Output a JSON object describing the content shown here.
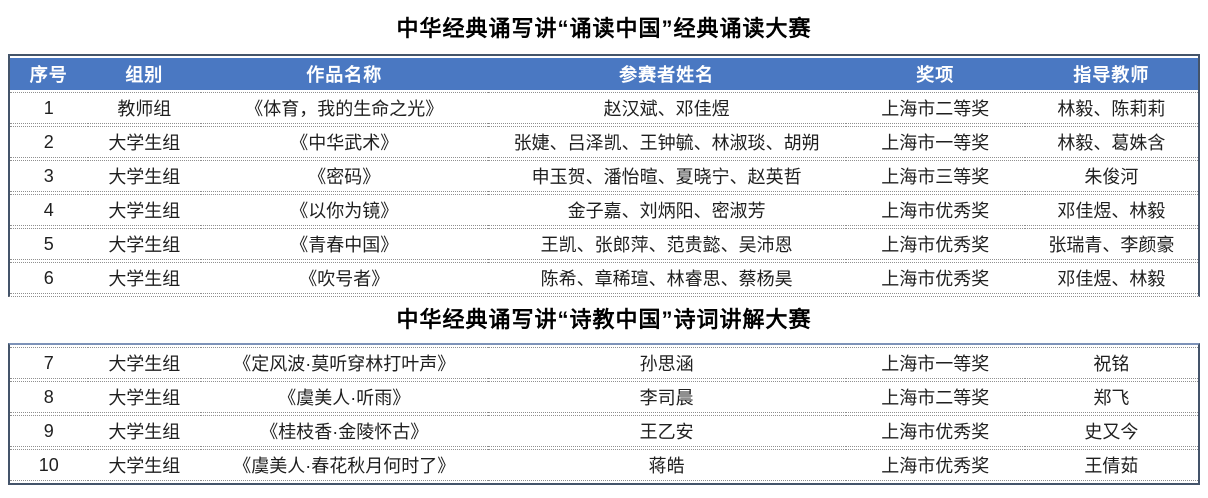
{
  "colors": {
    "header_bg": "#4A78C2",
    "header_text": "#ffffff",
    "table_border": "#44546A",
    "row_divider_dotted": "#8f8f8f",
    "body_text": "#1f1f1f",
    "title_text": "#000000"
  },
  "section_recitation": {
    "title": "中华经典诵写讲“诵读中国”经典诵读大赛",
    "columns": [
      "序号",
      "组别",
      "作品名称",
      "参赛者姓名",
      "奖项",
      "指导教师"
    ],
    "rows": [
      [
        "1",
        "教师组",
        "《体育，我的生命之光》",
        "赵汉斌、邓佳煜",
        "上海市二等奖",
        "林毅、陈莉莉"
      ],
      [
        "2",
        "大学生组",
        "《中华武术》",
        "张婕、吕泽凯、王钟毓、林淑琰、胡朔",
        "上海市一等奖",
        "林毅、葛姝含"
      ],
      [
        "3",
        "大学生组",
        "《密码》",
        "申玉贺、潘怡暄、夏晓宁、赵英哲",
        "上海市三等奖",
        "朱俊河"
      ],
      [
        "4",
        "大学生组",
        "《以你为镜》",
        "金子嘉、刘炳阳、密淑芳",
        "上海市优秀奖",
        "邓佳煜、林毅"
      ],
      [
        "5",
        "大学生组",
        "《青春中国》",
        "王凯、张郎萍、范贵懿、吴沛恩",
        "上海市优秀奖",
        "张瑞青、李颜豪"
      ],
      [
        "6",
        "大学生组",
        "《吹号者》",
        "陈希、章稀瑄、林睿思、蔡杨昊",
        "上海市优秀奖",
        "邓佳煜、林毅"
      ]
    ]
  },
  "section_poetry": {
    "title": "中华经典诵写讲“诗教中国”诗词讲解大赛",
    "rows": [
      [
        "7",
        "大学生组",
        "《定风波·莫听穿林打叶声》",
        "孙思涵",
        "上海市一等奖",
        "祝铭"
      ],
      [
        "8",
        "大学生组",
        "《虞美人·听雨》",
        "李司晨",
        "上海市二等奖",
        "郑飞"
      ],
      [
        "9",
        "大学生组",
        "《桂枝香·金陵怀古》",
        "王乙安",
        "上海市优秀奖",
        "史又今"
      ],
      [
        "10",
        "大学生组",
        "《虞美人·春花秋月何时了》",
        "蒋皓",
        "上海市优秀奖",
        "王倩茹"
      ]
    ]
  }
}
